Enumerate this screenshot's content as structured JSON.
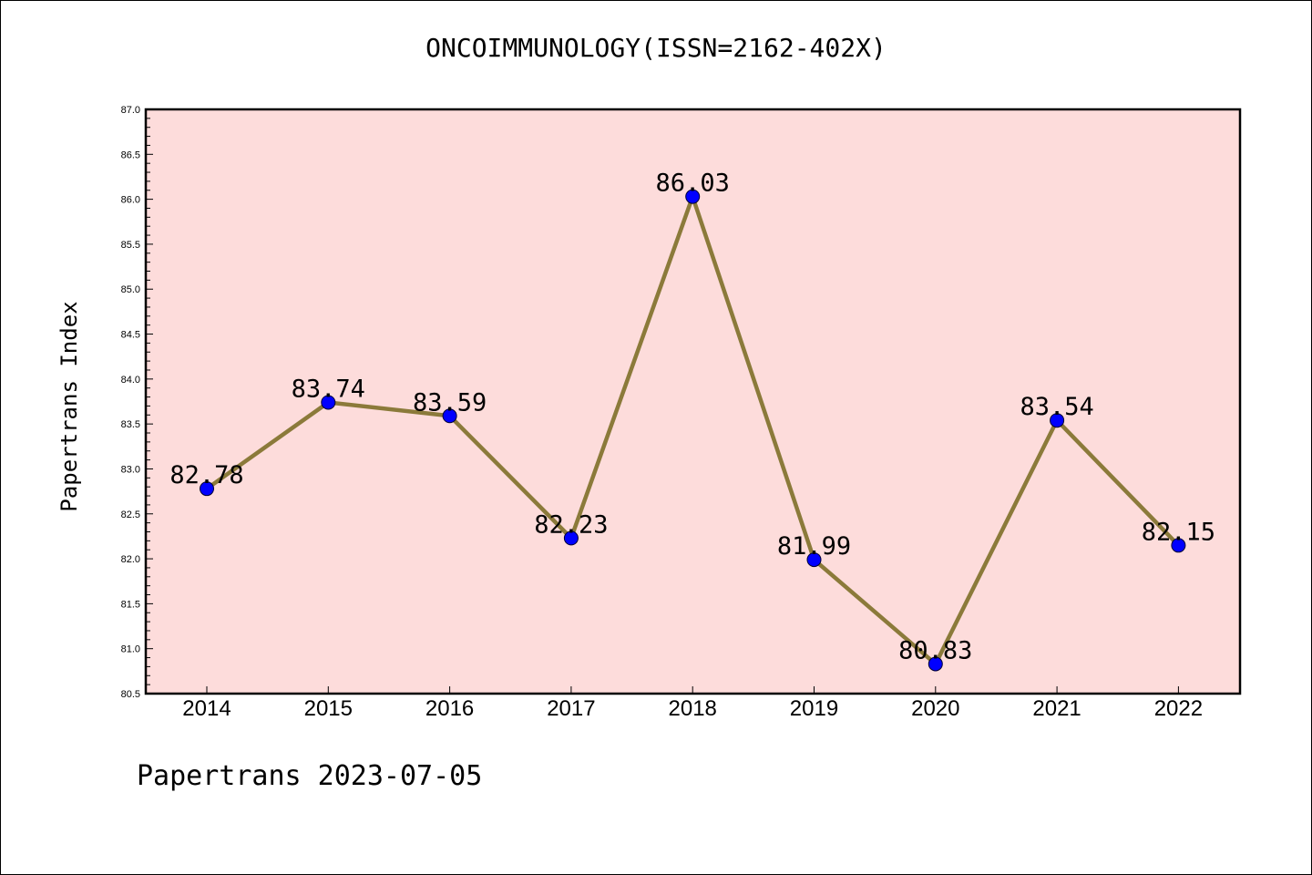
{
  "chart_data": {
    "type": "line",
    "title": "ONCOIMMUNOLOGY(ISSN=2162-402X)",
    "xlabel": "",
    "ylabel": "Papertrans Index",
    "categories": [
      "2014",
      "2015",
      "2016",
      "2017",
      "2018",
      "2019",
      "2020",
      "2021",
      "2022"
    ],
    "values": [
      82.78,
      83.74,
      83.59,
      82.23,
      86.03,
      81.99,
      80.83,
      83.54,
      82.15
    ],
    "data_labels": [
      "82.78",
      "83.74",
      "83.59",
      "82.23",
      "86.03",
      "81.99",
      "80.83",
      "83.54",
      "82.15"
    ],
    "ylim": [
      80.5,
      87.0
    ],
    "yticks": [
      "80.5",
      "81.0",
      "81.5",
      "82.0",
      "82.5",
      "83.0",
      "83.5",
      "84.0",
      "84.5",
      "85.0",
      "85.5",
      "86.0",
      "86.5",
      "87.0"
    ],
    "grid": false,
    "colors": {
      "plot_background": "#fddcdb",
      "line": "#8b7a3a",
      "marker": "#0000ff"
    }
  },
  "footer": "Papertrans 2023-07-05"
}
